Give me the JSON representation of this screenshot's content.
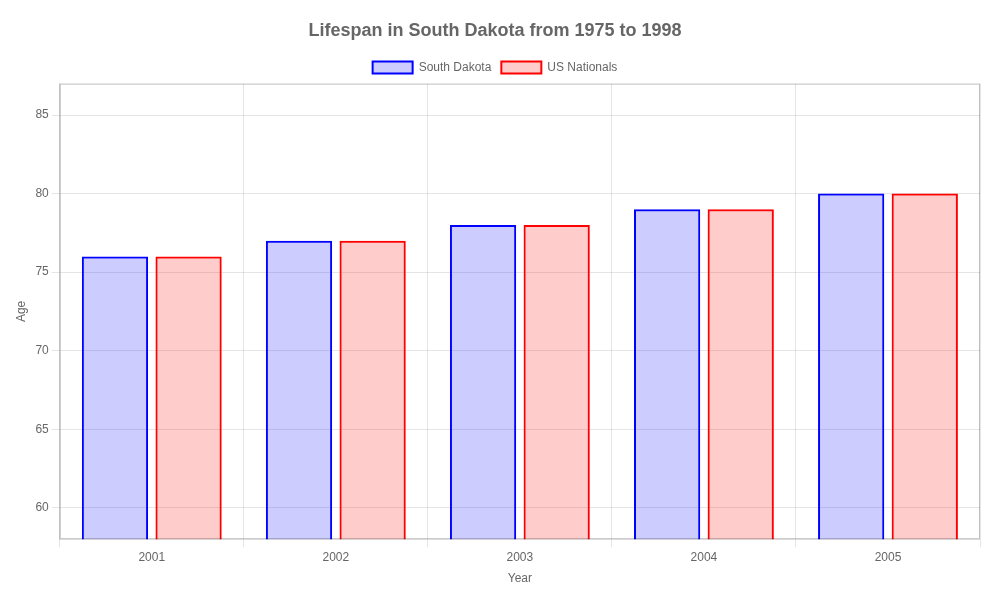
{
  "chart_data": {
    "type": "bar",
    "title": "Lifespan in South Dakota from 1975 to 1998",
    "x_label": "Year",
    "y_label": "Age",
    "categories": [
      "2001",
      "2002",
      "2003",
      "2004",
      "2005"
    ],
    "series": [
      {
        "name": "South Dakota",
        "color": "#0000ff",
        "values": [
          76,
          77,
          78,
          79,
          80
        ]
      },
      {
        "name": "US Nationals",
        "color": "#ff0000",
        "values": [
          76,
          77,
          78,
          79,
          80
        ]
      }
    ],
    "ylim": [
      58,
      87
    ],
    "yticks": [
      60,
      65,
      70,
      75,
      80,
      85
    ],
    "grid": true,
    "legend": "top"
  }
}
